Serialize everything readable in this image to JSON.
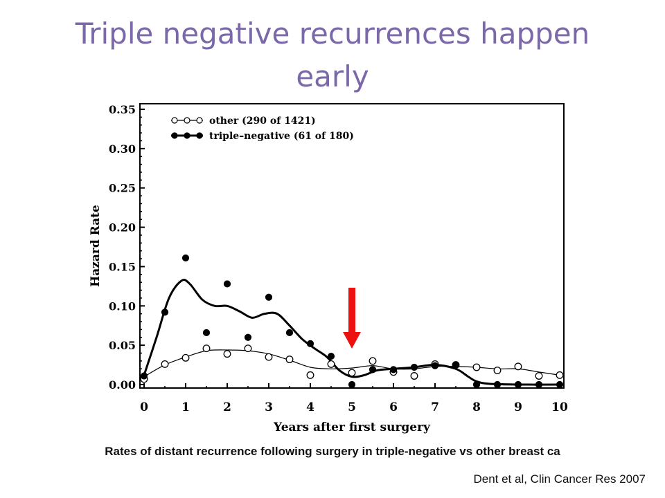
{
  "slide": {
    "title": "Triple negative recurrences happen early",
    "caption": "Rates of distant recurrence following surgery in triple-negative vs other breast ca",
    "citation": "Dent et al, Clin Cancer Res 2007"
  },
  "colors": {
    "title": "#7b68a8",
    "arrow": "#ee1111",
    "ink": "#000000"
  },
  "chart_data": {
    "type": "line",
    "xlabel": "Years after first surgery",
    "ylabel": "Hazard Rate",
    "xlim": [
      0,
      10
    ],
    "ylim": [
      0,
      0.35
    ],
    "xticks": [
      "0",
      "1",
      "2",
      "3",
      "4",
      "5",
      "6",
      "7",
      "8",
      "9",
      "10"
    ],
    "yticks": [
      "0.00",
      "0.05",
      "0.10",
      "0.15",
      "0.20",
      "0.25",
      "0.30",
      "0.35"
    ],
    "grid": false,
    "legend_position": "top-left",
    "series": [
      {
        "name": "other (290 of 1421)",
        "marker": "open-circle",
        "points": [
          [
            0,
            0.007
          ],
          [
            0.5,
            0.026
          ],
          [
            1,
            0.034
          ],
          [
            1.5,
            0.046
          ],
          [
            2,
            0.039
          ],
          [
            2.5,
            0.046
          ],
          [
            3,
            0.035
          ],
          [
            3.5,
            0.032
          ],
          [
            4,
            0.012
          ],
          [
            4.5,
            0.026
          ],
          [
            5,
            0.015
          ],
          [
            5.5,
            0.03
          ],
          [
            6,
            0.016
          ],
          [
            6.5,
            0.011
          ],
          [
            7,
            0.026
          ],
          [
            7.5,
            0.025
          ],
          [
            8,
            0.022
          ],
          [
            8.5,
            0.018
          ],
          [
            9,
            0.023
          ],
          [
            9.5,
            0.011
          ],
          [
            10,
            0.012
          ]
        ],
        "curve": [
          [
            0,
            0.01
          ],
          [
            0.5,
            0.025
          ],
          [
            1,
            0.035
          ],
          [
            1.5,
            0.043
          ],
          [
            2,
            0.044
          ],
          [
            2.5,
            0.043
          ],
          [
            3,
            0.039
          ],
          [
            3.5,
            0.031
          ],
          [
            4,
            0.022
          ],
          [
            4.5,
            0.02
          ],
          [
            5,
            0.021
          ],
          [
            5.5,
            0.024
          ],
          [
            6,
            0.02
          ],
          [
            6.5,
            0.02
          ],
          [
            7,
            0.023
          ],
          [
            7.5,
            0.023
          ],
          [
            8,
            0.022
          ],
          [
            8.5,
            0.02
          ],
          [
            9,
            0.02
          ],
          [
            9.5,
            0.016
          ],
          [
            10,
            0.012
          ]
        ]
      },
      {
        "name": "triple–negative (61 of 180)",
        "marker": "filled-circle",
        "points": [
          [
            0,
            0.011
          ],
          [
            0.5,
            0.092
          ],
          [
            1,
            0.161
          ],
          [
            1.5,
            0.066
          ],
          [
            2,
            0.128
          ],
          [
            2.5,
            0.06
          ],
          [
            3,
            0.111
          ],
          [
            3.5,
            0.066
          ],
          [
            4,
            0.052
          ],
          [
            4.5,
            0.036
          ],
          [
            5,
            0.0
          ],
          [
            5.5,
            0.019
          ],
          [
            6,
            0.019
          ],
          [
            6.5,
            0.022
          ],
          [
            7,
            0.024
          ],
          [
            7.5,
            0.025
          ],
          [
            8,
            0.0
          ],
          [
            8.5,
            0.0
          ],
          [
            9,
            0.0
          ],
          [
            9.5,
            0.0
          ],
          [
            10,
            0.0
          ]
        ],
        "curve": [
          [
            0,
            0.012
          ],
          [
            0.3,
            0.06
          ],
          [
            0.6,
            0.11
          ],
          [
            0.9,
            0.132
          ],
          [
            1.1,
            0.128
          ],
          [
            1.4,
            0.108
          ],
          [
            1.7,
            0.1
          ],
          [
            2,
            0.1
          ],
          [
            2.3,
            0.093
          ],
          [
            2.6,
            0.085
          ],
          [
            2.9,
            0.09
          ],
          [
            3.2,
            0.09
          ],
          [
            3.5,
            0.075
          ],
          [
            3.8,
            0.058
          ],
          [
            4.1,
            0.046
          ],
          [
            4.4,
            0.035
          ],
          [
            4.7,
            0.018
          ],
          [
            5,
            0.01
          ],
          [
            5.3,
            0.012
          ],
          [
            5.6,
            0.018
          ],
          [
            6,
            0.02
          ],
          [
            6.5,
            0.022
          ],
          [
            7,
            0.025
          ],
          [
            7.5,
            0.02
          ],
          [
            7.8,
            0.01
          ],
          [
            8,
            0.004
          ],
          [
            8.3,
            0.001
          ],
          [
            9,
            0.0
          ],
          [
            10,
            0.0
          ]
        ]
      }
    ],
    "annotation": {
      "type": "arrow",
      "x": 5,
      "direction": "down"
    }
  }
}
